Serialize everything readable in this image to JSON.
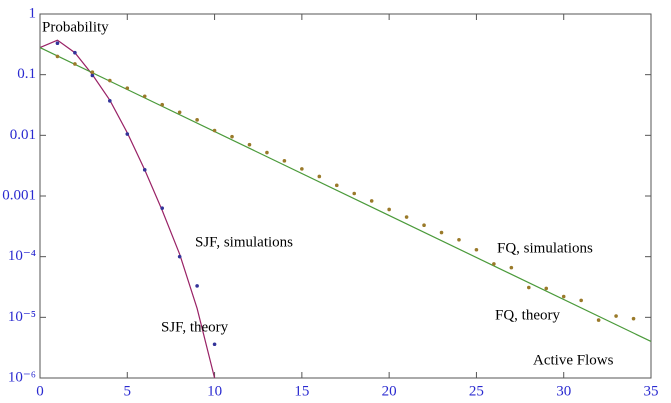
{
  "chart_data": {
    "type": "line",
    "ylabel": "Probability",
    "xlabel": "Active Flows",
    "log_y": true,
    "xlim": [
      0,
      35
    ],
    "xticks": [
      0,
      5,
      10,
      15,
      20,
      25,
      30,
      35
    ],
    "ylim": [
      1e-06,
      1
    ],
    "yticks": [
      1,
      0.1,
      0.01,
      0.001,
      {
        "value": 0.0001,
        "label": "10⁻⁴"
      },
      {
        "value": 1e-05,
        "label": "10⁻⁵"
      },
      {
        "value": 1e-06,
        "label": "10⁻⁶"
      }
    ],
    "series": [
      {
        "name": "SJF, theory",
        "color": "#992266",
        "style": "line",
        "x": [
          0,
          1,
          2,
          3,
          4,
          5,
          6,
          7,
          8,
          9,
          10
        ],
        "values": [
          0.28,
          0.37,
          0.23,
          0.1,
          0.038,
          0.011,
          0.0027,
          0.00058,
          0.00011,
          1.4e-05,
          1e-06
        ]
      },
      {
        "name": "SJF, simulations",
        "color": "#333399",
        "style": "points",
        "x": [
          1,
          2,
          3,
          4,
          5,
          6,
          7,
          8,
          9,
          10
        ],
        "values": [
          0.33,
          0.23,
          0.097,
          0.037,
          0.0105,
          0.0027,
          0.00063,
          0.0001,
          3.3e-05,
          3.6e-06
        ]
      },
      {
        "name": "FQ, theory",
        "color": "#4a9a3a",
        "style": "line",
        "x": [
          0,
          35
        ],
        "values": [
          0.28,
          4e-06
        ]
      },
      {
        "name": "FQ, simulations",
        "color": "#9a7a2a",
        "style": "points",
        "x": [
          1,
          2,
          3,
          4,
          5,
          6,
          7,
          8,
          9,
          10,
          11,
          12,
          13,
          14,
          15,
          16,
          17,
          18,
          19,
          20,
          21,
          22,
          23,
          24,
          25,
          26,
          27,
          28,
          29,
          30,
          31,
          32,
          33,
          34
        ],
        "values": [
          0.2,
          0.15,
          0.11,
          0.08,
          0.06,
          0.044,
          0.032,
          0.024,
          0.018,
          0.012,
          0.0095,
          0.007,
          0.0052,
          0.0038,
          0.0028,
          0.0021,
          0.0015,
          0.0011,
          0.00083,
          0.0006,
          0.00045,
          0.00033,
          0.00025,
          0.00019,
          0.00013,
          7.6e-05,
          6.6e-05,
          3.1e-05,
          3e-05,
          2.2e-05,
          1.9e-05,
          9e-06,
          1.05e-05,
          9.5e-06
        ]
      }
    ]
  }
}
